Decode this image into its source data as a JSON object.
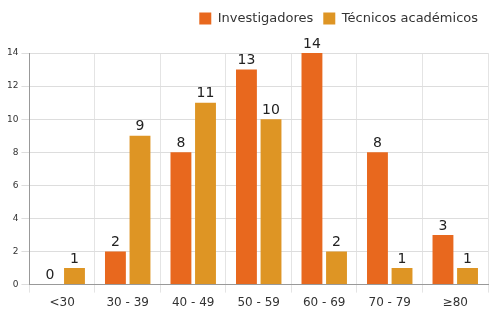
{
  "chart_data": {
    "type": "bar",
    "categories": [
      "<30",
      "30 - 39",
      "40 - 49",
      "50 - 59",
      "60 - 69",
      "70 - 79",
      "≥80"
    ],
    "series": [
      {
        "name": "Investigadores",
        "color": "#e8681e",
        "values": [
          0,
          2,
          8,
          13,
          14,
          8,
          3
        ]
      },
      {
        "name": "Técnicos académicos",
        "color": "#de9524",
        "values": [
          1,
          9,
          11,
          10,
          2,
          1,
          1
        ]
      }
    ],
    "ylim": [
      0,
      14
    ],
    "yticks": [
      0,
      2,
      4,
      6,
      8,
      10,
      12,
      14
    ],
    "grid": true,
    "legend": "upper right",
    "data_labels": true
  }
}
